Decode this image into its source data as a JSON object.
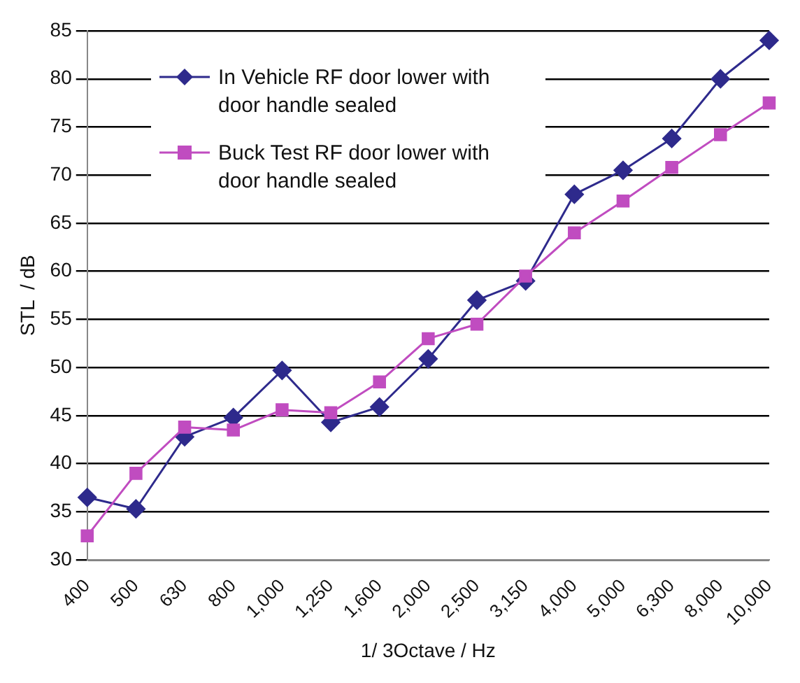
{
  "chart_data": {
    "type": "line",
    "xlabel": "1/ 3Octave / Hz",
    "ylabel": "STL  / dB",
    "categories": [
      "400",
      "500",
      "630",
      "800",
      "1,000",
      "1,250",
      "1,600",
      "2,000",
      "2,500",
      "3,150",
      "4,000",
      "5,000",
      "6,300",
      "8,000",
      "10,000"
    ],
    "series": [
      {
        "name": "In Vehicle RF door lower with door handle sealed",
        "color": "#2e2a8c",
        "marker": "diamond",
        "values": [
          36.5,
          35.3,
          42.8,
          44.8,
          49.7,
          44.3,
          45.9,
          50.9,
          57,
          59,
          68,
          70.5,
          73.8,
          80,
          84
        ]
      },
      {
        "name": "Buck Test RF door lower with door handle sealed",
        "color": "#c04cc0",
        "marker": "square",
        "values": [
          32.5,
          39,
          43.8,
          43.5,
          45.6,
          45.3,
          48.5,
          53,
          54.5,
          59.5,
          64,
          67.3,
          70.8,
          74.2,
          77.5
        ]
      }
    ],
    "ylim": [
      30,
      85
    ],
    "yticks": [
      30,
      35,
      40,
      45,
      50,
      55,
      60,
      65,
      70,
      75,
      80,
      85
    ],
    "grid": "y",
    "legend": "top left",
    "line_style": "solid"
  }
}
